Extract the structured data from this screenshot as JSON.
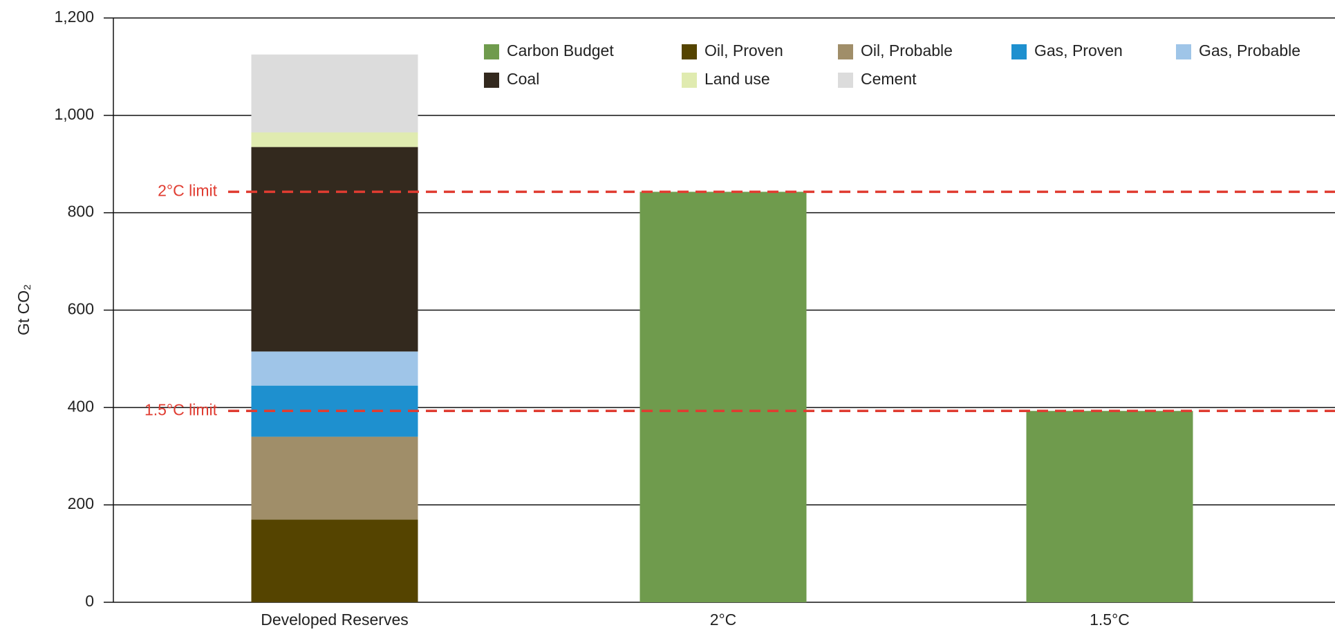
{
  "chart_data": {
    "type": "stacked_bar",
    "y_label": "Gt CO₂",
    "categories": [
      "Developed Reserves",
      "2°C",
      "1.5°C"
    ],
    "series": [
      {
        "name": "Carbon Budget",
        "color": "#6f9b4d",
        "values": [
          null,
          843,
          393
        ]
      },
      {
        "name": "Oil, Proven",
        "color": "#554400",
        "values": [
          170,
          null,
          null
        ]
      },
      {
        "name": "Oil, Probable",
        "color": "#a08e69",
        "values": [
          170,
          null,
          null
        ]
      },
      {
        "name": "Gas, Proven",
        "color": "#1e90cf",
        "values": [
          105,
          null,
          null
        ]
      },
      {
        "name": "Gas, Probable",
        "color": "#9fc5e8",
        "values": [
          70,
          null,
          null
        ]
      },
      {
        "name": "Coal",
        "color": "#33291e",
        "values": [
          420,
          null,
          null
        ]
      },
      {
        "name": "Land use",
        "color": "#e0ebb0",
        "values": [
          30,
          null,
          null
        ]
      },
      {
        "name": "Cement",
        "color": "#dcdcdc",
        "values": [
          160,
          null,
          null
        ]
      }
    ],
    "ylim": [
      0,
      1200
    ],
    "yticks": [
      0,
      200,
      400,
      600,
      800,
      {
        "value": 1000,
        "label": "1,000"
      },
      {
        "value": 1200,
        "label": "1,200"
      }
    ],
    "grid": true,
    "reference_lines": [
      {
        "label": "2°C limit",
        "value": 843,
        "color": "#e03c31"
      },
      {
        "label": "1.5°C limit",
        "value": 393,
        "color": "#e03c31"
      }
    ]
  }
}
